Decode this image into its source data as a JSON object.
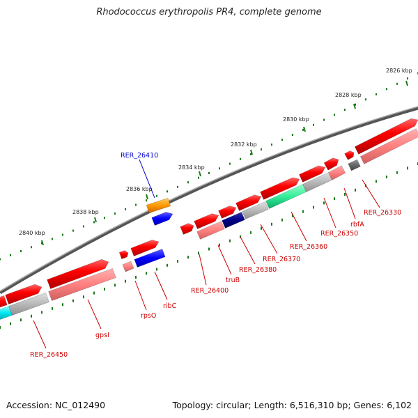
{
  "title": "Rhodococcus erythropolis PR4, complete genome",
  "footer": {
    "accession": "Accession: NC_012490",
    "topology": "Topology: circular; Length: 6,516,310 bp; Genes: 6,102"
  },
  "ruler": {
    "ticks": [
      "2826 kbp",
      "2828 kbp",
      "2830 kbp",
      "2832 kbp",
      "2834 kbp",
      "2836 kbp",
      "2838 kbp",
      "2840 kbp"
    ]
  },
  "gene_labels": [
    {
      "text": "RER_26410",
      "color": "#0000cc"
    },
    {
      "text": "RER_26330",
      "color": "#cc0000"
    },
    {
      "text": "rbfA",
      "color": "#cc0000"
    },
    {
      "text": "RER_26350",
      "color": "#cc0000"
    },
    {
      "text": "RER_26360",
      "color": "#cc0000"
    },
    {
      "text": "RER_26370",
      "color": "#cc0000"
    },
    {
      "text": "RER_26380",
      "color": "#cc0000"
    },
    {
      "text": "truB",
      "color": "#cc0000"
    },
    {
      "text": "RER_26400",
      "color": "#cc0000"
    },
    {
      "text": "ribC",
      "color": "#cc0000"
    },
    {
      "text": "rpsO",
      "color": "#cc0000"
    },
    {
      "text": "gpsI",
      "color": "#cc0000"
    },
    {
      "text": "RER_26450",
      "color": "#cc0000"
    }
  ],
  "colors": {
    "cds": "#ff0000",
    "cds_light": "#ff8080",
    "gray": "#b0b0b0",
    "teal": "#33ee99",
    "navy": "#000088",
    "blue": "#0000ff",
    "orange": "#ff9900",
    "cyan": "#00e5ee",
    "backbone": "#777777",
    "tick": "#1a7a1a"
  }
}
